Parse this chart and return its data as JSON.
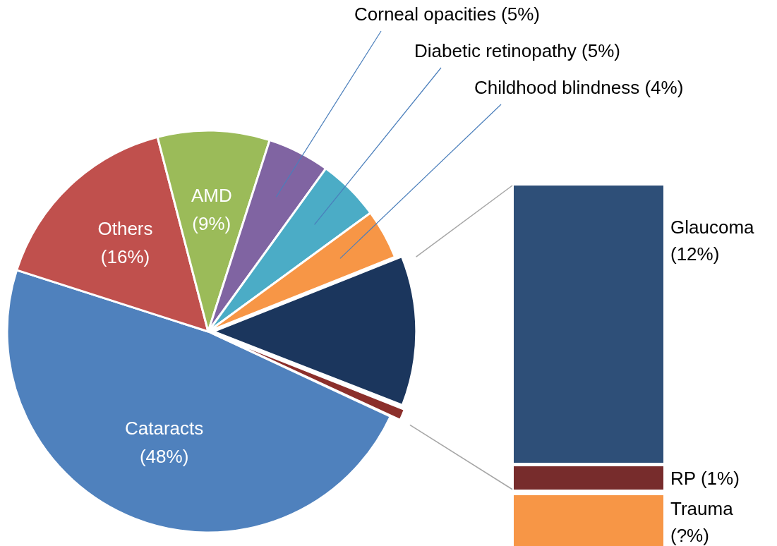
{
  "chart_data": [
    {
      "type": "pie",
      "categories": [
        "Cataracts",
        "Others",
        "AMD",
        "Corneal opacities",
        "Diabetic retinopathy",
        "Childhood blindness",
        null,
        null
      ],
      "values": [
        48,
        16,
        9,
        5,
        5,
        4,
        12,
        1
      ],
      "colors": [
        "#4f81bd",
        "#c0504d",
        "#9bbb59",
        "#8064a2",
        "#4bacc6",
        "#f79646",
        "#1b365d",
        "#8b2f2b"
      ],
      "value_labels": [
        "(48%)",
        "(16%)",
        "(9%)",
        "(5%)",
        "(5%)",
        "(4%)",
        null,
        null
      ]
    },
    {
      "type": "other",
      "categories": [
        "Glaucoma",
        "RP",
        "Trauma"
      ],
      "values": [
        12,
        1,
        null
      ],
      "colors": [
        "#2e4f78",
        "#772c2c",
        "#f79646"
      ],
      "value_labels": [
        "(12%)",
        "(1%)",
        "(?%)"
      ]
    }
  ]
}
